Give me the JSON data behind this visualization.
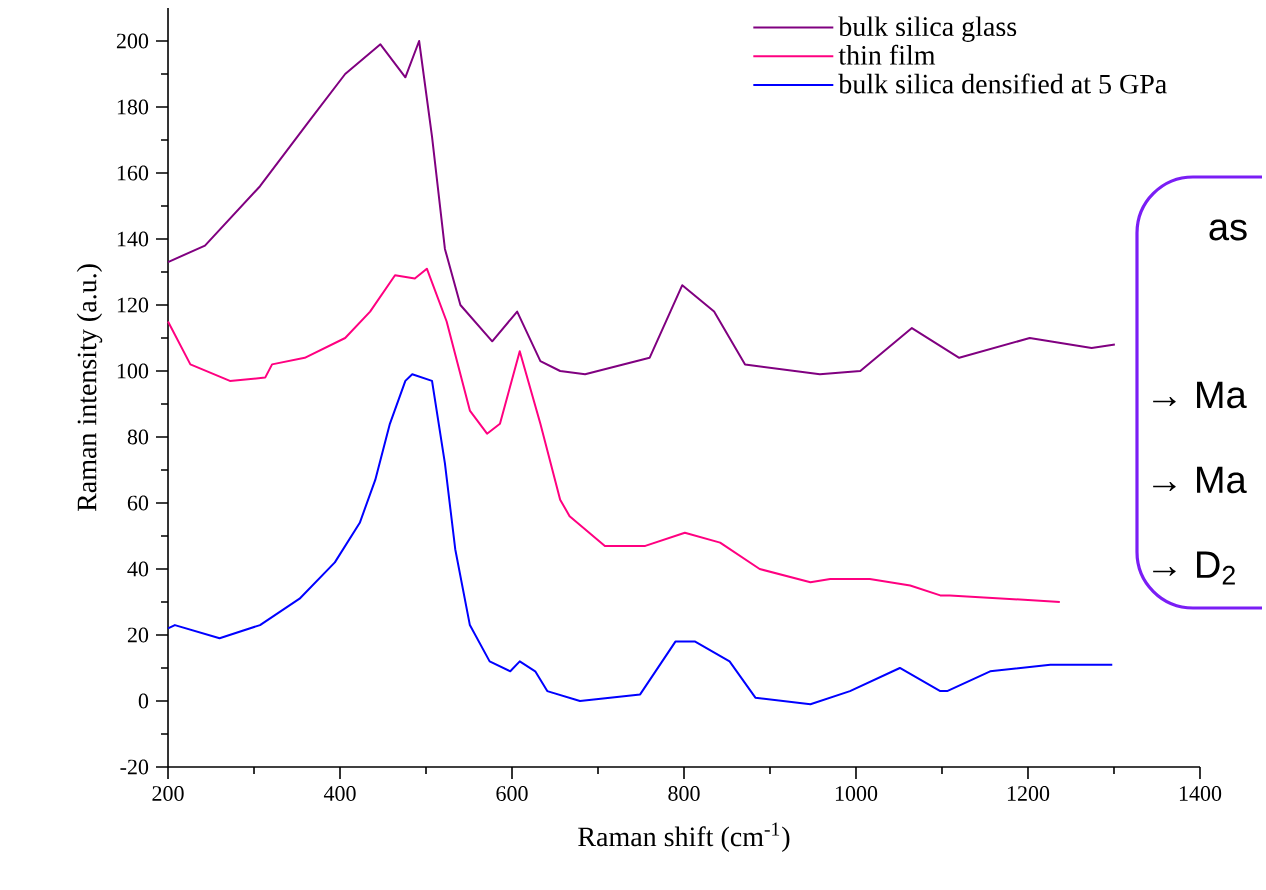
{
  "chart_data": {
    "type": "line",
    "xlabel": "Raman shift (cm$^{-1}$)",
    "ylabel": "Raman intensity (a.u.)",
    "xlim": [
      200,
      1400
    ],
    "ylim": [
      -20,
      210
    ],
    "xticks": [
      200,
      400,
      600,
      800,
      1000,
      1200,
      1400
    ],
    "yticks": [
      -20,
      0,
      20,
      40,
      60,
      80,
      100,
      120,
      140,
      160,
      180,
      200
    ],
    "legend": "top right",
    "series": [
      {
        "name": "bulk silica glass",
        "color": "#800080",
        "x": [
          200,
          243,
          307,
          365,
          406,
          447,
          476,
          492,
          507,
          522,
          540,
          577,
          606,
          633,
          656,
          685,
          760,
          798,
          835,
          871,
          958,
          1005,
          1065,
          1120,
          1202,
          1274,
          1301
        ],
        "values": [
          133,
          138,
          156,
          176,
          190,
          199,
          189,
          200,
          171,
          137,
          120,
          109,
          118,
          103,
          100,
          99,
          104,
          126,
          118,
          102,
          99,
          100,
          113,
          104,
          110,
          107,
          108
        ]
      },
      {
        "name": "thin film",
        "color": "#ff0080",
        "x": [
          200,
          226,
          272,
          313,
          321,
          359,
          406,
          435,
          464,
          487,
          501,
          524,
          551,
          571,
          586,
          609,
          633,
          656,
          667,
          708,
          755,
          801,
          842,
          888,
          947,
          970,
          1016,
          1063,
          1098,
          1109,
          1237
        ],
        "values": [
          115,
          102,
          97,
          98,
          102,
          104,
          110,
          118,
          129,
          128,
          131,
          115,
          88,
          81,
          84,
          106,
          84,
          61,
          56,
          47,
          47,
          51,
          48,
          40,
          36,
          37,
          37,
          35,
          32,
          32,
          30
        ]
      },
      {
        "name": "bulk silica densified at 5 GPa",
        "color": "#0000ff",
        "x": [
          200,
          208,
          260,
          307,
          353,
          394,
          423,
          441,
          458,
          476,
          484,
          507,
          522,
          534,
          551,
          574,
          598,
          609,
          627,
          641,
          679,
          749,
          790,
          813,
          853,
          883,
          947,
          993,
          1051,
          1098,
          1106,
          1156,
          1226,
          1298
        ],
        "values": [
          22,
          23,
          19,
          23,
          31,
          42,
          54,
          67,
          84,
          97,
          99,
          97,
          72,
          46,
          23,
          12,
          9,
          12,
          9,
          3,
          0,
          2,
          18,
          18,
          12,
          1,
          -1,
          3,
          10,
          3,
          3,
          9,
          11,
          11
        ]
      }
    ],
    "annotations": [
      "as",
      "→ Ma",
      "→ Ma",
      "→ D$_{2}$"
    ]
  }
}
